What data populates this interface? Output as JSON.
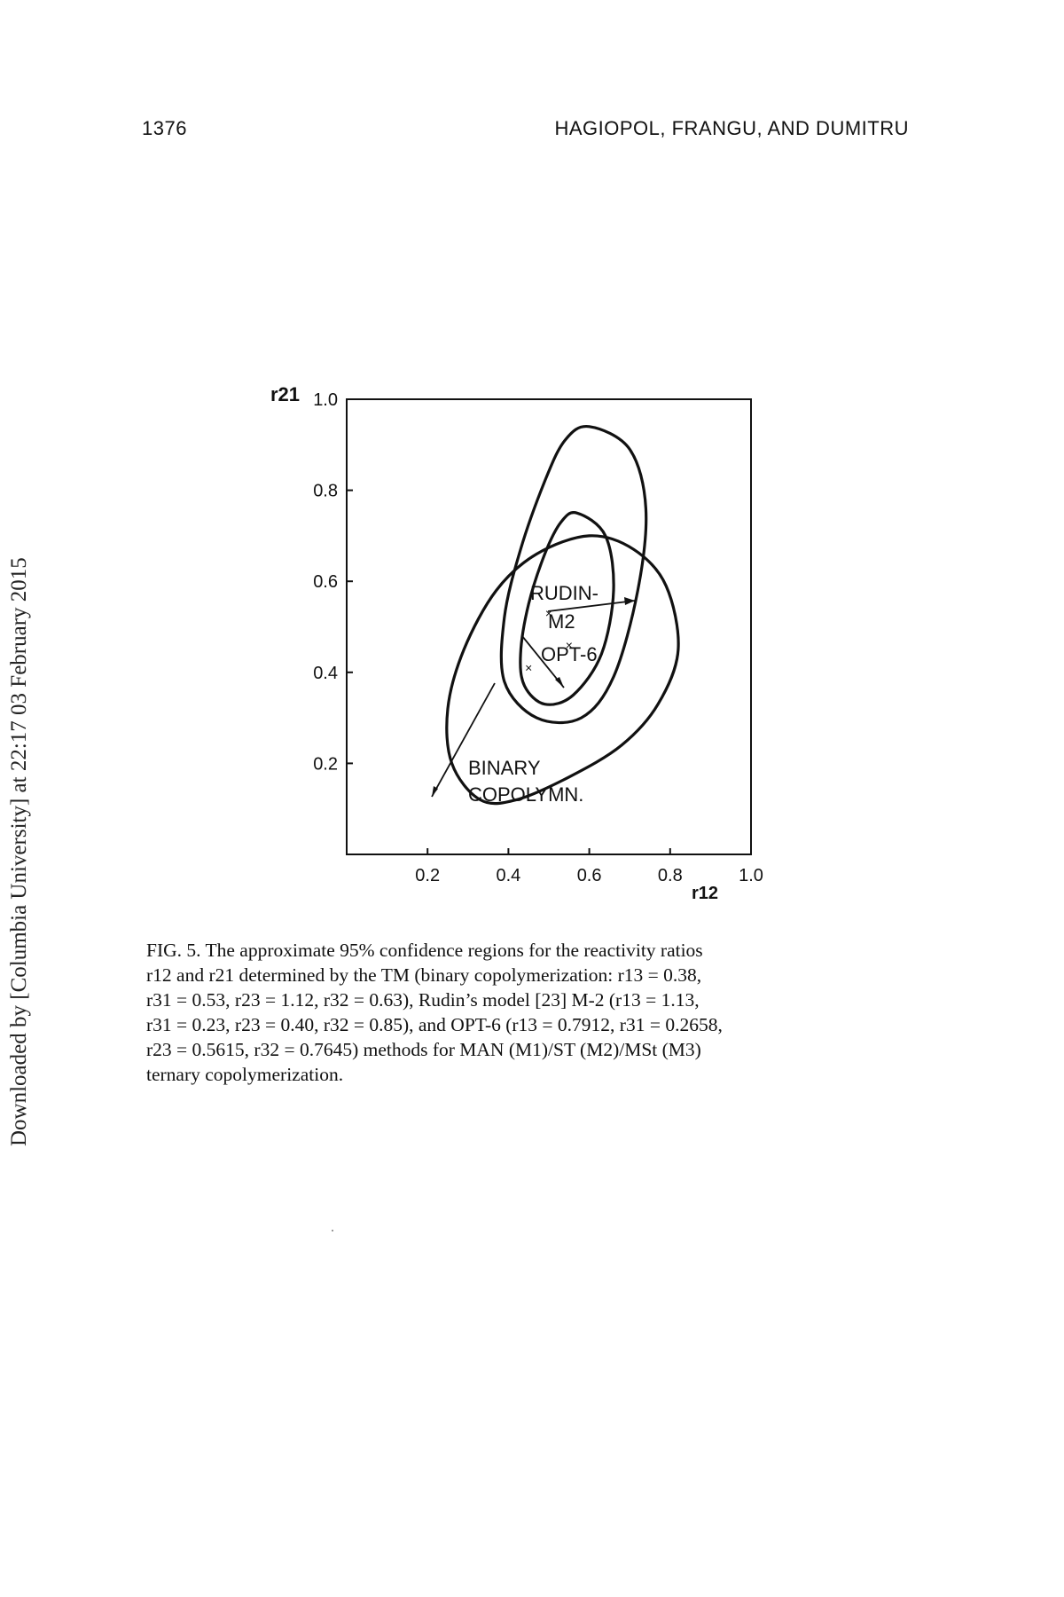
{
  "header": {
    "page_number": "1376",
    "authors": "HAGIOPOL, FRANGU, AND DUMITRU"
  },
  "side_note": "Downloaded by [Columbia University] at 22:17 03 February 2015",
  "figure": {
    "axis_label_y": "r21",
    "axis_label_x": "r12",
    "curve_labels": {
      "rudin_line1": "RUDIN-",
      "rudin_line2": "M2",
      "opt": "OPT-6",
      "binary_line1": "BINARY",
      "binary_line2": "COPOLYMN."
    }
  },
  "chart_data": {
    "type": "scatter",
    "xlabel": "r12",
    "ylabel": "r21",
    "xlim": [
      0.0,
      1.0
    ],
    "ylim": [
      0.0,
      1.0
    ],
    "x_ticks": [
      "0.2",
      "0.4",
      "0.6",
      "0.8",
      "1.0"
    ],
    "y_ticks": [
      "0.2",
      "0.4",
      "0.6",
      "0.8",
      "1.0"
    ],
    "grid": false,
    "series": [
      {
        "name": "RUDIN-M2",
        "point": {
          "x": 0.5,
          "y": 0.53
        },
        "region_outline": [
          [
            0.6,
            0.94
          ],
          [
            0.7,
            0.89
          ],
          [
            0.74,
            0.76
          ],
          [
            0.72,
            0.58
          ],
          [
            0.66,
            0.39
          ],
          [
            0.58,
            0.3
          ],
          [
            0.47,
            0.3
          ],
          [
            0.39,
            0.38
          ],
          [
            0.39,
            0.52
          ],
          [
            0.43,
            0.67
          ],
          [
            0.49,
            0.82
          ],
          [
            0.54,
            0.91
          ]
        ]
      },
      {
        "name": "OPT-6",
        "point": {
          "x": 0.55,
          "y": 0.46
        },
        "region_outline": [
          [
            0.57,
            0.75
          ],
          [
            0.64,
            0.7
          ],
          [
            0.66,
            0.58
          ],
          [
            0.63,
            0.44
          ],
          [
            0.56,
            0.35
          ],
          [
            0.49,
            0.33
          ],
          [
            0.44,
            0.37
          ],
          [
            0.43,
            0.44
          ],
          [
            0.45,
            0.55
          ],
          [
            0.49,
            0.66
          ],
          [
            0.53,
            0.73
          ]
        ]
      },
      {
        "name": "BINARY COPOLYMN.",
        "point": {
          "x": 0.45,
          "y": 0.41
        },
        "region_outline": [
          [
            0.6,
            0.7
          ],
          [
            0.71,
            0.67
          ],
          [
            0.79,
            0.59
          ],
          [
            0.82,
            0.45
          ],
          [
            0.77,
            0.33
          ],
          [
            0.68,
            0.24
          ],
          [
            0.55,
            0.17
          ],
          [
            0.42,
            0.12
          ],
          [
            0.33,
            0.12
          ],
          [
            0.26,
            0.2
          ],
          [
            0.25,
            0.32
          ],
          [
            0.29,
            0.45
          ],
          [
            0.37,
            0.58
          ],
          [
            0.47,
            0.66
          ]
        ]
      }
    ]
  },
  "caption": {
    "lines": [
      "FIG. 5. The approximate 95% confidence regions for the reactivity ratios",
      "r12 and r21 determined by the TM (binary copolymerization: r13 = 0.38,",
      "r31 = 0.53, r23 = 1.12, r32 = 0.63), Rudin’s model [23] M-2 (r13 = 1.13,",
      "r31 = 0.23, r23 = 0.40, r32 = 0.85), and OPT-6 (r13 = 0.7912, r31 = 0.2658,",
      "r23 = 0.5615, r32 = 0.7645) methods for MAN (M1)/ST (M2)/MSt (M3)",
      "ternary copolymerization."
    ]
  }
}
